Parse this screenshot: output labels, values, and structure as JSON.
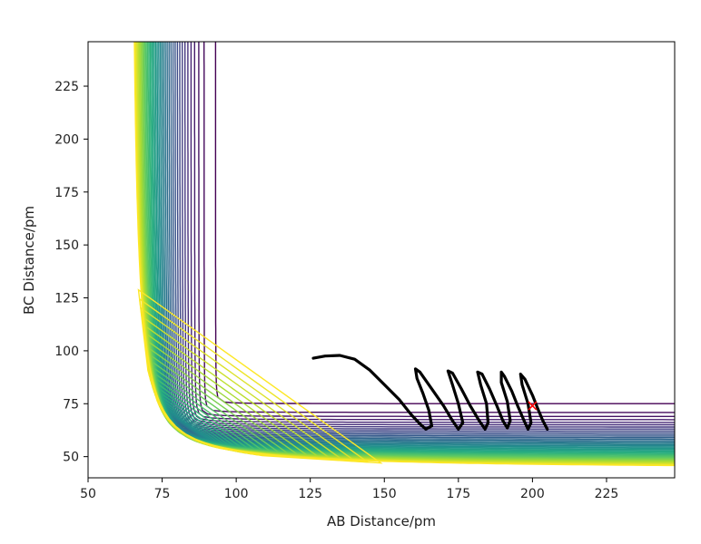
{
  "chart_data": {
    "type": "contour",
    "title": "",
    "xlabel": "AB Distance/pm",
    "ylabel": "BC Distance/pm",
    "xlim": [
      50,
      248
    ],
    "ylim": [
      40,
      246
    ],
    "x_ticks": [
      50,
      75,
      100,
      125,
      150,
      175,
      200,
      225
    ],
    "y_ticks": [
      50,
      75,
      100,
      125,
      150,
      175,
      200,
      225
    ],
    "x_tick_labels": [
      "50",
      "75",
      "100",
      "125",
      "150",
      "175",
      "200",
      "225"
    ],
    "y_tick_labels": [
      "50",
      "75",
      "100",
      "125",
      "150",
      "175",
      "200",
      "225"
    ],
    "colormap": [
      "#440154",
      "#472d7b",
      "#3b528b",
      "#2c728e",
      "#21918c",
      "#28ae80",
      "#5ec962",
      "#addc30",
      "#fde725"
    ],
    "contour_count": 40,
    "trajectory": {
      "color": "#000000",
      "points": [
        [
          126,
          96.5
        ],
        [
          130,
          97.5
        ],
        [
          135,
          97.8
        ],
        [
          140,
          96
        ],
        [
          145,
          91
        ],
        [
          150,
          84
        ],
        [
          155,
          77
        ],
        [
          159,
          70
        ],
        [
          162,
          65.5
        ],
        [
          164,
          63
        ],
        [
          166,
          64.5
        ],
        [
          165,
          72
        ],
        [
          163,
          80
        ],
        [
          161,
          87
        ],
        [
          160.5,
          91.5
        ],
        [
          162,
          90
        ],
        [
          166,
          82
        ],
        [
          170,
          74
        ],
        [
          173,
          67
        ],
        [
          175,
          63
        ],
        [
          176.5,
          66
        ],
        [
          175,
          75
        ],
        [
          173,
          84
        ],
        [
          171.5,
          90.5
        ],
        [
          173,
          89.5
        ],
        [
          176,
          82
        ],
        [
          179,
          74
        ],
        [
          182,
          67
        ],
        [
          184,
          63
        ],
        [
          185,
          66
        ],
        [
          184.5,
          75
        ],
        [
          182.5,
          84
        ],
        [
          181.5,
          90
        ],
        [
          183,
          89
        ],
        [
          185.5,
          82
        ],
        [
          188,
          74
        ],
        [
          190,
          67
        ],
        [
          191.5,
          63.5
        ],
        [
          192.5,
          67
        ],
        [
          191.5,
          76
        ],
        [
          189.5,
          85
        ],
        [
          189.5,
          90
        ],
        [
          190.5,
          88
        ],
        [
          193,
          81
        ],
        [
          195,
          74
        ],
        [
          197,
          67.5
        ],
        [
          198.5,
          63
        ],
        [
          199.5,
          66
        ],
        [
          198.5,
          75
        ],
        [
          196.5,
          84
        ],
        [
          196,
          89
        ],
        [
          197.5,
          86.5
        ],
        [
          200,
          79
        ],
        [
          202,
          72
        ],
        [
          203.5,
          67
        ],
        [
          205,
          63
        ]
      ]
    },
    "marker": {
      "x": 200,
      "y": 74,
      "symbol": "x",
      "color": "#ff0000"
    }
  }
}
